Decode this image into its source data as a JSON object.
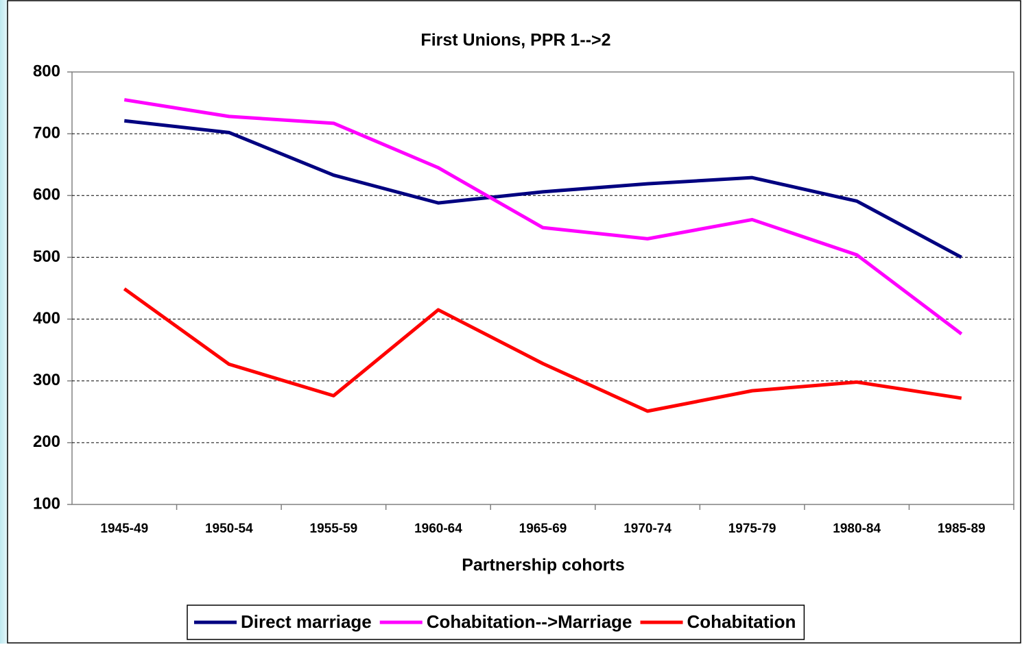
{
  "chart_data": {
    "type": "line",
    "title": "First Unions, PPR 1-->2",
    "x_label": "Partnership cohorts",
    "categories": [
      "1945-49",
      "1950-54",
      "1955-59",
      "1960-64",
      "1965-69",
      "1970-74",
      "1975-79",
      "1980-84",
      "1985-89"
    ],
    "series": [
      {
        "name": "Direct marriage",
        "color": "#000080",
        "values": [
          721,
          702,
          633,
          588,
          606,
          619,
          629,
          591,
          500
        ]
      },
      {
        "name": "Cohabitation-->Marriage",
        "color": "#ff00ff",
        "values": [
          755,
          728,
          717,
          645,
          548,
          530,
          561,
          504,
          376
        ]
      },
      {
        "name": "Cohabitation",
        "color": "#ff0000",
        "values": [
          449,
          327,
          276,
          415,
          328,
          251,
          284,
          298,
          272
        ]
      }
    ],
    "ylim": [
      100,
      800
    ],
    "yticks": [
      100,
      200,
      300,
      400,
      500,
      600,
      700,
      800
    ],
    "grid": true,
    "legend": "bottom"
  }
}
